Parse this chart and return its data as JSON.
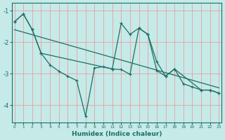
{
  "xlabel": "Humidex (Indice chaleur)",
  "background_color": "#c5eae8",
  "line_color": "#1a7068",
  "grid_color": "#e8a0a0",
  "xlim": [
    -0.3,
    23.3
  ],
  "ylim": [
    -4.55,
    -0.75
  ],
  "xticks": [
    0,
    1,
    2,
    3,
    4,
    5,
    6,
    7,
    8,
    9,
    10,
    11,
    12,
    13,
    14,
    15,
    16,
    17,
    18,
    19,
    20,
    21,
    22,
    23
  ],
  "yticks": [
    -1,
    -2,
    -3,
    -4
  ],
  "line1_x": [
    0,
    1,
    2,
    3,
    4,
    5,
    6,
    7,
    8,
    9,
    10,
    11,
    12,
    13,
    14,
    15,
    16,
    17,
    18,
    19,
    20,
    21,
    22,
    23
  ],
  "line1_y": [
    -1.35,
    -1.1,
    -1.6,
    -2.35,
    -2.72,
    -2.92,
    -3.08,
    -3.22,
    -4.35,
    -2.82,
    -2.78,
    -2.85,
    -2.87,
    -3.02,
    -1.55,
    -1.75,
    -2.9,
    -3.08,
    -2.85,
    -3.32,
    -3.42,
    -3.52,
    -3.52,
    -3.62
  ],
  "line2_x": [
    0,
    1,
    2,
    3,
    11,
    12,
    13,
    14,
    15,
    16,
    17,
    18,
    21,
    22,
    23
  ],
  "line2_y": [
    -1.35,
    -1.1,
    -1.6,
    -2.35,
    -2.85,
    -1.4,
    -1.75,
    -1.55,
    -1.75,
    -2.62,
    -3.08,
    -2.85,
    -3.52,
    -3.52,
    -3.62
  ],
  "line3_x": [
    0,
    23
  ],
  "line3_y": [
    -1.6,
    -3.45
  ]
}
